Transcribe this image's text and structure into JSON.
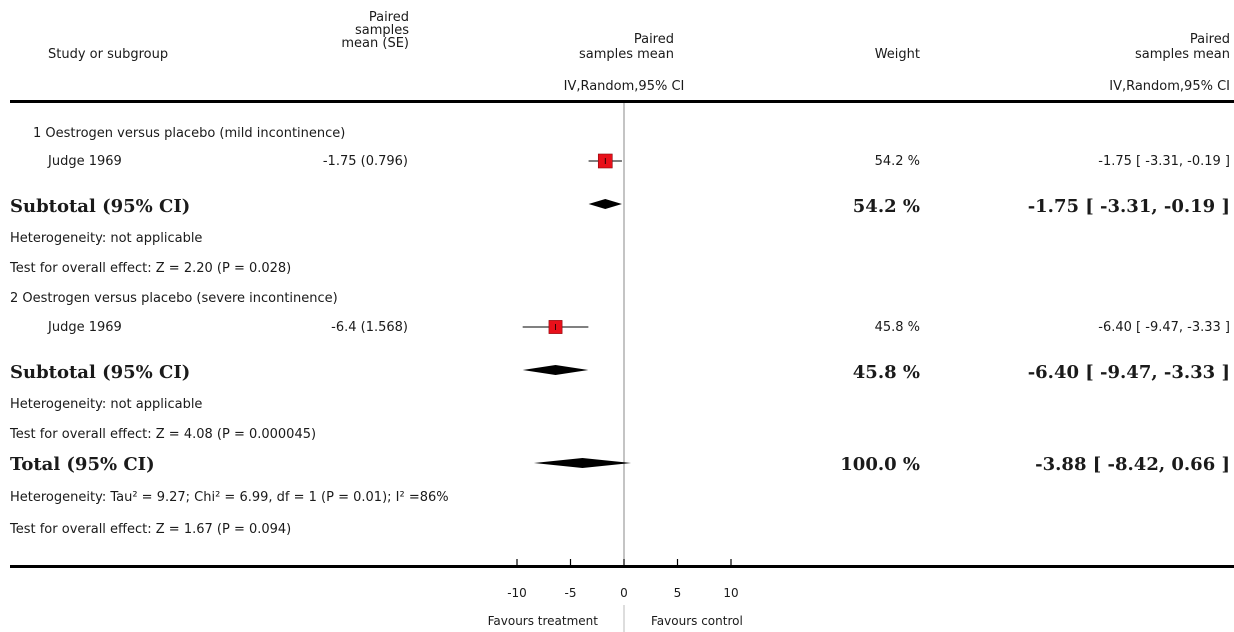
{
  "header": {
    "study_col": "Study or subgroup",
    "mean_col": [
      "Paired",
      "samples",
      "mean (SE)"
    ],
    "plot_col": [
      "Paired",
      "samples mean"
    ],
    "plot_sub": "IV,Random,95% CI",
    "weight_col": "Weight",
    "effect_col": [
      "Paired",
      "samples mean"
    ],
    "effect_sub": "IV,Random,95% CI"
  },
  "subgroups": [
    {
      "title": "1 Oestrogen versus placebo (mild incontinence)",
      "study": {
        "name": "Judge 1969",
        "mean_se": "-1.75 (0.796)",
        "weight": "54.2 %",
        "effect": "-1.75 [ -3.31, -0.19 ]"
      },
      "subtotal": {
        "label": "Subtotal (95% CI)",
        "weight": "54.2 %",
        "effect": "-1.75 [ -3.31, -0.19 ]"
      },
      "heterogeneity": "Heterogeneity: not applicable",
      "overall_effect": "Test for overall effect: Z = 2.20 (P = 0.028)"
    },
    {
      "title": "2 Oestrogen versus placebo (severe incontinence)",
      "study": {
        "name": "Judge 1969",
        "mean_se": "-6.4 (1.568)",
        "weight": "45.8 %",
        "effect": "-6.40 [ -9.47, -3.33 ]"
      },
      "subtotal": {
        "label": "Subtotal (95% CI)",
        "weight": "45.8 %",
        "effect": "-6.40 [ -9.47, -3.33 ]"
      },
      "heterogeneity": "Heterogeneity: not applicable",
      "overall_effect": "Test for overall effect: Z = 4.08 (P = 0.000045)"
    }
  ],
  "total": {
    "label": "Total (95% CI)",
    "weight": "100.0 %",
    "effect": "-3.88 [ -8.42, 0.66 ]",
    "heterogeneity": "Heterogeneity: Tau² = 9.27; Chi² = 6.99, df = 1 (P = 0.01); I² =86%",
    "overall_effect": "Test for overall effect: Z = 1.67 (P = 0.094)"
  },
  "axis": {
    "favours_left": "Favours treatment",
    "favours_right": "Favours control"
  },
  "colors": {
    "square": "#e8101a",
    "ink": "#000000"
  },
  "chart_data": {
    "type": "forest",
    "xlim": [
      -10,
      10
    ],
    "ticks": [
      -10,
      -5,
      0,
      5,
      10
    ],
    "tick_labels": [
      "-10",
      "-5",
      "0",
      "5",
      "10"
    ],
    "studies": [
      {
        "name": "Judge 1969",
        "subgroup": 1,
        "estimate": -1.75,
        "ci": [
          -3.31,
          -0.19
        ],
        "weight": 54.2
      },
      {
        "name": "Judge 1969",
        "subgroup": 2,
        "estimate": -6.4,
        "ci": [
          -9.47,
          -3.33
        ],
        "weight": 45.8
      }
    ],
    "pooled": [
      {
        "label": "Subtotal (95% CI)",
        "subgroup": 1,
        "estimate": -1.75,
        "ci": [
          -3.31,
          -0.19
        ]
      },
      {
        "label": "Subtotal (95% CI)",
        "subgroup": 2,
        "estimate": -6.4,
        "ci": [
          -9.47,
          -3.33
        ]
      },
      {
        "label": "Total (95% CI)",
        "estimate": -3.88,
        "ci": [
          -8.42,
          0.66
        ]
      }
    ]
  }
}
